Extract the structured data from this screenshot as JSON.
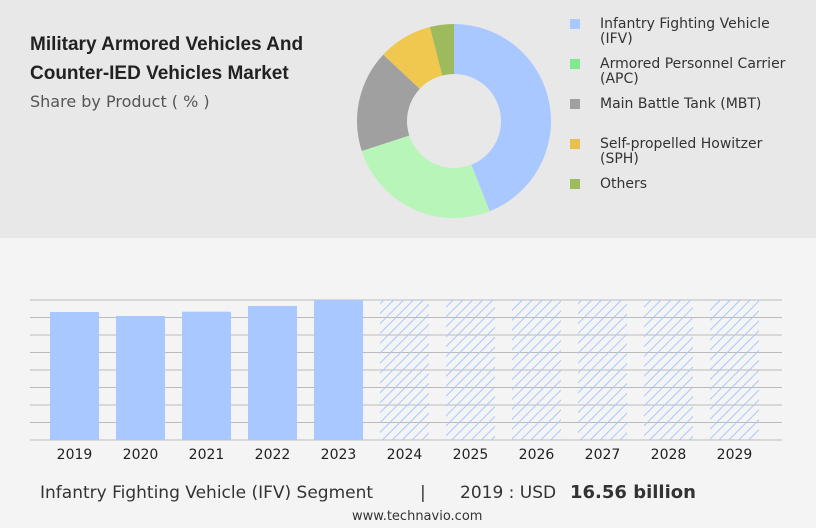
{
  "chart_data": [
    {
      "type": "pie",
      "title": "Military Armored Vehicles And Counter-IED Vehicles Market",
      "subtitle": "Share by Product ( % )",
      "categories": [
        "Infantry Fighting Vehicle (IFV)",
        "Armored Personnel Carrier (APC)",
        "Main Battle Tank (MBT)",
        "Self-propelled Howitzer (SPH)",
        "Others"
      ],
      "values": [
        44,
        26,
        17,
        9,
        4
      ],
      "colors": [
        "#a8c8ff",
        "#b8f5b8",
        "#a0a0a0",
        "#f0c850",
        "#9dbb5c"
      ],
      "legend_colors": [
        "#a8c8ff",
        "#80e890",
        "#a0a0a0",
        "#e8c050",
        "#9dbb5c"
      ]
    },
    {
      "type": "bar",
      "categories": [
        "2019",
        "2020",
        "2021",
        "2022",
        "2023",
        "2024",
        "2025",
        "2026",
        "2027",
        "2028",
        "2029"
      ],
      "values": [
        16.56,
        16.04,
        16.6,
        17.34,
        18.11,
        null,
        null,
        null,
        null,
        null,
        null
      ],
      "color": "#a8c8ff",
      "ylim": [
        0,
        18.11
      ],
      "footer": {
        "segment": "Infantry Fighting Vehicle (IFV) Segment",
        "separator": "|",
        "year_label": "2019 : USD",
        "value_text": "16.56 billion",
        "source": "www.technavio.com"
      }
    }
  ]
}
